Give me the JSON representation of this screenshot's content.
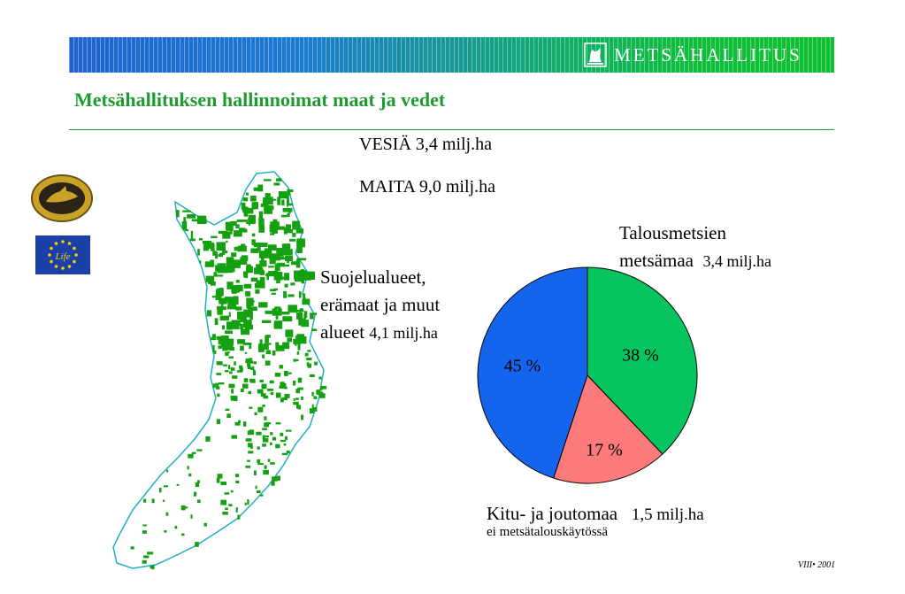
{
  "header": {
    "brand": "METSÄHALLITUS",
    "logo_icon": "metsahallitus-tree-logo-icon"
  },
  "page_title": "Metsähallituksen hallinnoimat maat ja vedet",
  "stats": {
    "waters_label": "VESIÄ",
    "waters_value": "3,4 milj.ha",
    "lands_label": "MAITA",
    "lands_value": "9,0 milj.ha"
  },
  "labels": {
    "commercial_line1": "Talousmetsien",
    "commercial_line2": "metsämaa",
    "commercial_value": "3,4 milj.ha",
    "protected_line1": "Suojelualueet,",
    "protected_line2": "erämaat ja muut",
    "protected_line3": "alueet",
    "protected_value": "4,1 milj.ha",
    "poor_line1": "Kitu- ja joutomaa",
    "poor_value": "1,5 milj.ha",
    "poor_line2": "ei metsätalouskäytössä"
  },
  "colors": {
    "commercial": "#06c45e",
    "protected": "#1464ee",
    "poor": "#fc7a7a",
    "map_forest": "#14a010",
    "map_border": "#20b0c0",
    "title": "#1e9b2e"
  },
  "left_badges": [
    "siikalahti-seal-icon",
    "eu-life-flag-icon"
  ],
  "footer": {
    "code": "VIII• 2001"
  },
  "chart_data": {
    "type": "pie",
    "slices": [
      {
        "name": "Talousmetsien metsämaa",
        "value": 38,
        "label": "38 %"
      },
      {
        "name": "Kitu- ja joutomaa",
        "value": 17,
        "label": "17 %"
      },
      {
        "name": "Suojelualueet, erämaat ja muut alueet",
        "value": 45,
        "label": "45 %"
      }
    ]
  }
}
